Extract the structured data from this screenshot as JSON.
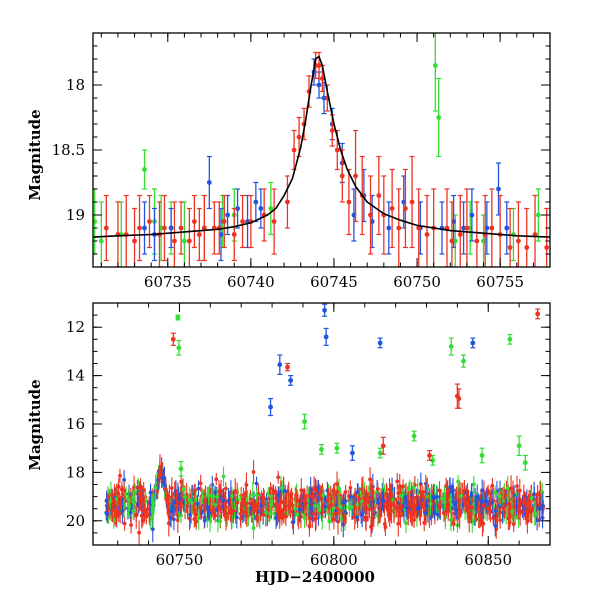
{
  "chart_data": [
    {
      "type": "scatter",
      "panel": "top",
      "title": "",
      "xlabel": "",
      "ylabel": "Magnitude",
      "xlim": [
        60730.5,
        60758
      ],
      "ylim": [
        19.4,
        17.6
      ],
      "y_inverted": true,
      "x_ticks": [
        60735,
        60740,
        60745,
        60750,
        60755
      ],
      "x_tick_labels": [
        "60735",
        "60740",
        "60745",
        "60750",
        "60755"
      ],
      "y_ticks": [
        18,
        18.5,
        19
      ],
      "y_tick_labels": [
        "18",
        "18.5",
        "19"
      ],
      "grid": false,
      "legend": "none",
      "series": [
        {
          "color": "#33dd33",
          "marker": "point-with-errorbar",
          "x": [
            60730.6,
            60731.0,
            60732.2,
            60733.6,
            60734.2,
            60734.6,
            60735.2,
            60736.0,
            60737.2,
            60738.3,
            60739.0,
            60741.2,
            60751.1,
            60751.3,
            60752.3,
            60753.2,
            60754.0,
            60755.8,
            60757.3
          ],
          "y": [
            19.05,
            19.2,
            19.15,
            18.65,
            19.05,
            19.1,
            19.1,
            19.2,
            19.1,
            19.05,
            19.0,
            18.95,
            17.85,
            18.25,
            19.2,
            19.1,
            19.2,
            19.15,
            19.0
          ],
          "err": [
            0.25,
            0.3,
            0.25,
            0.15,
            0.25,
            0.25,
            0.2,
            0.3,
            0.25,
            0.2,
            0.2,
            0.2,
            0.35,
            0.3,
            0.2,
            0.2,
            0.2,
            0.2,
            0.2
          ]
        },
        {
          "color": "#2255dd",
          "marker": "point-with-errorbar",
          "x": [
            60733.6,
            60734.2,
            60735.2,
            60737.5,
            60738.2,
            60738.6,
            60739.2,
            60739.8,
            60740.3,
            60740.6,
            60743.8,
            60744.1,
            60744.4,
            60744.9,
            60745.5,
            60746.2,
            60746.8,
            60747.3,
            60748.3,
            60749.2,
            60750.2,
            60751.5,
            60752.2,
            60752.8,
            60753.3,
            60754.2,
            60754.9,
            60755.4
          ],
          "y": [
            19.1,
            19.15,
            19.1,
            18.75,
            19.15,
            19.0,
            18.95,
            19.05,
            18.9,
            18.95,
            17.9,
            18.0,
            18.1,
            18.3,
            18.6,
            19.0,
            18.85,
            19.05,
            19.1,
            18.9,
            19.1,
            19.1,
            19.05,
            19.1,
            19.0,
            19.1,
            18.8,
            19.1
          ],
          "err": [
            0.2,
            0.2,
            0.15,
            0.2,
            0.2,
            0.15,
            0.15,
            0.2,
            0.15,
            0.15,
            0.1,
            0.1,
            0.12,
            0.12,
            0.15,
            0.2,
            0.2,
            0.2,
            0.2,
            0.2,
            0.2,
            0.2,
            0.2,
            0.2,
            0.2,
            0.2,
            0.2,
            0.2
          ]
        },
        {
          "color": "#ee3322",
          "marker": "point-with-errorbar",
          "x": [
            60731.3,
            60732.0,
            60732.5,
            60733.0,
            60733.3,
            60733.9,
            60734.5,
            60734.8,
            60735.4,
            60735.8,
            60736.3,
            60736.6,
            60736.9,
            60737.2,
            60737.8,
            60738.1,
            60738.4,
            60739.0,
            60739.5,
            60740.0,
            60740.8,
            60741.4,
            60742.2,
            60742.6,
            60742.9,
            60743.2,
            60743.5,
            60743.9,
            60744.1,
            60744.3,
            60744.6,
            60744.9,
            60745.2,
            60745.5,
            60745.9,
            60746.3,
            60746.7,
            60747.2,
            60747.7,
            60748.0,
            60748.5,
            60748.9,
            60749.3,
            60749.7,
            60750.1,
            60750.6,
            60751.0,
            60751.8,
            60752.1,
            60752.6,
            60753.0,
            60753.6,
            60754.1,
            60754.5,
            60755.0,
            60755.6,
            60756.1,
            60756.6,
            60757.1,
            60757.8
          ],
          "y": [
            19.1,
            19.15,
            19.15,
            19.2,
            19.1,
            19.05,
            19.15,
            19.1,
            19.2,
            19.1,
            19.2,
            19.05,
            19.15,
            19.1,
            19.1,
            19.1,
            19.05,
            19.15,
            19.05,
            19.05,
            19.0,
            19.05,
            18.9,
            18.5,
            18.4,
            18.3,
            18.05,
            17.85,
            17.85,
            17.95,
            18.1,
            18.35,
            18.5,
            18.7,
            18.9,
            18.7,
            18.85,
            19.0,
            18.85,
            19.0,
            18.95,
            19.1,
            18.95,
            18.9,
            19.1,
            19.15,
            19.1,
            19.1,
            19.2,
            19.15,
            19.1,
            19.2,
            19.15,
            19.1,
            19.15,
            19.25,
            19.2,
            19.25,
            19.15,
            19.25
          ],
          "err": [
            0.25,
            0.25,
            0.3,
            0.25,
            0.25,
            0.2,
            0.25,
            0.25,
            0.3,
            0.2,
            0.25,
            0.2,
            0.2,
            0.25,
            0.2,
            0.2,
            0.2,
            0.2,
            0.2,
            0.2,
            0.2,
            0.25,
            0.2,
            0.15,
            0.15,
            0.12,
            0.12,
            0.1,
            0.1,
            0.1,
            0.1,
            0.12,
            0.15,
            0.2,
            0.25,
            0.35,
            0.3,
            0.3,
            0.3,
            0.3,
            0.3,
            0.3,
            0.3,
            0.35,
            0.3,
            0.3,
            0.3,
            0.3,
            0.3,
            0.3,
            0.3,
            0.3,
            0.3,
            0.3,
            0.3,
            0.3,
            0.3,
            0.3,
            0.3,
            0.3
          ]
        }
      ],
      "model_curve": {
        "color": "#000000",
        "x": [
          60730.5,
          60732,
          60734,
          60736,
          60738,
          60739,
          60740,
          60741,
          60741.5,
          60742,
          60742.5,
          60743,
          60743.3,
          60743.6,
          60743.9,
          60744.1,
          60744.3,
          60744.6,
          60745,
          60745.4,
          60745.8,
          60746.3,
          60747,
          60748,
          60749,
          60750,
          60752,
          60754,
          60756,
          60758
        ],
        "y": [
          19.17,
          19.16,
          19.15,
          19.13,
          19.11,
          19.09,
          19.06,
          19.0,
          18.95,
          18.85,
          18.72,
          18.48,
          18.27,
          18.02,
          17.8,
          17.78,
          17.85,
          18.05,
          18.3,
          18.5,
          18.65,
          18.78,
          18.9,
          18.99,
          19.04,
          19.08,
          19.12,
          19.14,
          19.16,
          19.17
        ]
      }
    },
    {
      "type": "scatter",
      "panel": "bottom",
      "title": "",
      "xlabel": "HJD−2400000",
      "ylabel": "Magnitude",
      "xlim": [
        60722,
        60870
      ],
      "ylim": [
        21,
        11
      ],
      "y_inverted": true,
      "x_ticks": [
        60750,
        60800,
        60850
      ],
      "x_tick_labels": [
        "60750",
        "60800",
        "60850"
      ],
      "y_ticks": [
        12,
        14,
        16,
        18,
        20
      ],
      "y_tick_labels": [
        "12",
        "14",
        "16",
        "18",
        "20"
      ],
      "grid": false,
      "legend": "none",
      "series": [
        {
          "color": "#33dd33",
          "marker": "point-with-errorbar",
          "x": [
            60749.5,
            60749.8,
            60750.5,
            60790.5,
            60796,
            60801,
            60815,
            60826,
            60832,
            60838,
            60842,
            60848,
            60857,
            60860,
            60862
          ],
          "y": [
            11.6,
            12.85,
            17.85,
            15.9,
            17.05,
            17.0,
            17.2,
            16.5,
            17.5,
            12.8,
            13.4,
            17.3,
            12.5,
            16.9,
            17.6
          ],
          "err": [
            0.1,
            0.3,
            0.3,
            0.3,
            0.2,
            0.2,
            0.2,
            0.2,
            0.2,
            0.35,
            0.25,
            0.3,
            0.2,
            0.4,
            0.3
          ]
        },
        {
          "color": "#2255dd",
          "marker": "point-with-errorbar",
          "x": [
            60779.5,
            60782.5,
            60786,
            60797,
            60797.5,
            60806,
            60815,
            60845
          ],
          "y": [
            15.3,
            13.55,
            14.2,
            11.3,
            12.4,
            17.2,
            12.65,
            12.65
          ],
          "err": [
            0.35,
            0.4,
            0.2,
            0.25,
            0.35,
            0.3,
            0.2,
            0.2
          ]
        },
        {
          "color": "#ee3322",
          "marker": "point-with-errorbar",
          "x": [
            60748,
            60785,
            60816,
            60831,
            60840,
            60840.5,
            60866
          ],
          "y": [
            12.5,
            13.65,
            16.9,
            17.3,
            14.85,
            14.95,
            11.45
          ],
          "err": [
            0.25,
            0.15,
            0.35,
            0.2,
            0.5,
            0.4,
            0.2
          ]
        }
      ],
      "baseline": {
        "x_range": [
          60726,
          60868
        ],
        "mean_magnitude": 19.3,
        "scatter": 0.35,
        "flare_x": 60744,
        "flare_peak_magnitude": 17.85
      }
    }
  ]
}
